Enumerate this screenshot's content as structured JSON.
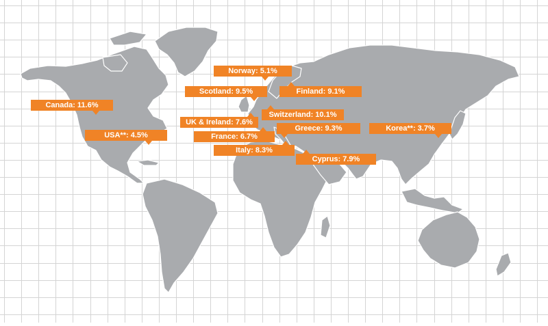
{
  "colors": {
    "callout": "#f08326",
    "land": "#a9abae",
    "grid": "#d4d4d4",
    "background": "#ffffff"
  },
  "labels": [
    {
      "id": "norway",
      "country": "Norway",
      "value": "5.1%",
      "text": "Norway: 5.1%"
    },
    {
      "id": "scotland",
      "country": "Scotland",
      "value": "9.5%",
      "text": "Scotland: 9.5%"
    },
    {
      "id": "finland",
      "country": "Finland",
      "value": "9.1%",
      "text": "Finland: 9.1%"
    },
    {
      "id": "canada",
      "country": "Canada",
      "value": "11.6%",
      "text": "Canada: 11.6%"
    },
    {
      "id": "switzerland",
      "country": "Switzerland",
      "value": "10.1%",
      "text": "Switzerland: 10.1%"
    },
    {
      "id": "uk-ireland",
      "country": "UK & Ireland",
      "value": "7.6%",
      "text": "UK & Ireland: 7.6%"
    },
    {
      "id": "greece",
      "country": "Greece",
      "value": "9.3%",
      "text": "Greece: 9.3%"
    },
    {
      "id": "korea",
      "country": "Korea**",
      "value": "3.7%",
      "text": "Korea**: 3.7%"
    },
    {
      "id": "usa",
      "country": "USA**",
      "value": "4.5%",
      "text": "USA**: 4.5%"
    },
    {
      "id": "france",
      "country": "France",
      "value": "6.7%",
      "text": "France: 6.7%"
    },
    {
      "id": "italy",
      "country": "Italy",
      "value": "8.3%",
      "text": "Italy: 8.3%"
    },
    {
      "id": "cyprus",
      "country": "Cyprus",
      "value": "7.9%",
      "text": "Cyprus: 7.9%"
    }
  ]
}
